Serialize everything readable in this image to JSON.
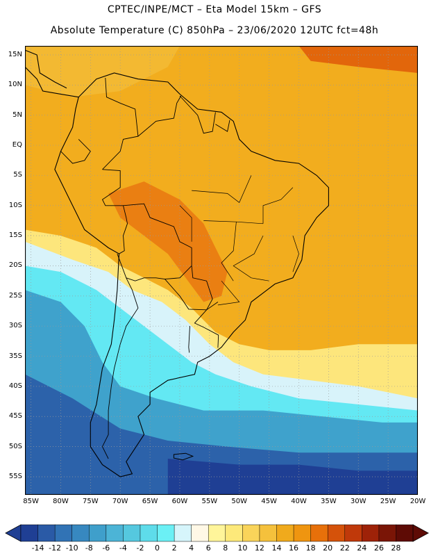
{
  "header": {
    "line1": "CPTEC/INPE/MCT –  Eta Model 15km – GFS",
    "line2": "Absolute Temperature (C) 850hPa – 23/06/2020 12UTC fct=48h"
  },
  "map": {
    "lat_labels": [
      "15N",
      "10N",
      "5N",
      "EQ",
      "5S",
      "10S",
      "15S",
      "20S",
      "25S",
      "30S",
      "35S",
      "40S",
      "45S",
      "50S",
      "55S"
    ],
    "lat_values": [
      15,
      10,
      5,
      0,
      -5,
      -10,
      -15,
      -20,
      -25,
      -30,
      -35,
      -40,
      -45,
      -50,
      -55
    ],
    "lon_labels": [
      "85W",
      "80W",
      "75W",
      "70W",
      "65W",
      "60W",
      "55W",
      "50W",
      "45W",
      "40W",
      "35W",
      "30W",
      "25W",
      "20W"
    ],
    "lon_values": [
      -85,
      -80,
      -75,
      -70,
      -65,
      -60,
      -55,
      -50,
      -45,
      -40,
      -35,
      -30,
      -25,
      -20
    ],
    "lat_range": [
      -58,
      16.5
    ],
    "lon_range": [
      -86,
      -20
    ],
    "gridlines": "dotted"
  },
  "colorbar": {
    "labels": [
      "-14",
      "-12",
      "-10",
      "-8",
      "-6",
      "-4",
      "-2",
      "0",
      "2",
      "4",
      "6",
      "8",
      "10",
      "12",
      "14",
      "16",
      "18",
      "20",
      "22",
      "24",
      "26",
      "28"
    ],
    "colors": [
      "#1f3f94",
      "#2a5aa6",
      "#3173b5",
      "#3788c0",
      "#3f9fcb",
      "#4cb4d6",
      "#55c8df",
      "#5edcea",
      "#6bf0f5",
      "#d6f5fb",
      "#fff8e6",
      "#fff59a",
      "#fde97a",
      "#f9d45a",
      "#f5c13c",
      "#f0aa1c",
      "#ef9510",
      "#e7700a",
      "#d5520a",
      "#c0390a",
      "#9e2208",
      "#7a1506",
      "#5e0b05"
    ],
    "title": ""
  }
}
